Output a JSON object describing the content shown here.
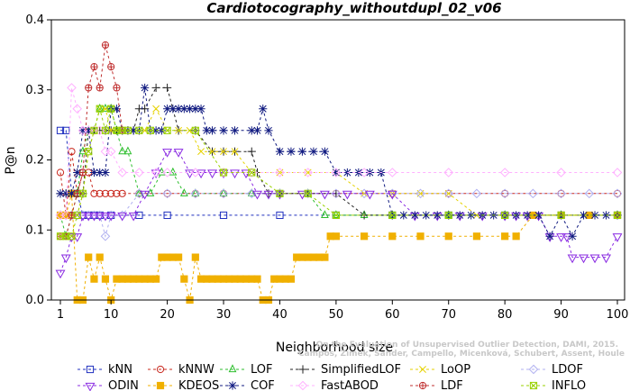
{
  "chart_data": {
    "type": "line",
    "title": "Cardiotocography_withoutdupl_02_v06",
    "xlabel": "Neighborhood size",
    "ylabel": "P@n",
    "xlim": [
      1,
      100
    ],
    "ylim": [
      0,
      0.4
    ],
    "xticks": [
      "1",
      "10",
      "20",
      "30",
      "40",
      "50",
      "60",
      "70",
      "80",
      "90",
      "100"
    ],
    "yticks": [
      "0.0",
      "0.1",
      "0.2",
      "0.3",
      "0.4"
    ],
    "credit_lines": [
      "Campos, Zimek, Sander, Campello, Micenková, Schubert, Assent, Houle",
      "On the Evaluation of Unsupervised Outlier Detection, DAMI, 2015."
    ],
    "legend_position": "bottom",
    "series": [
      {
        "name": "kNN",
        "color": "#1f2fbf",
        "marker": "square",
        "x": [
          1,
          2,
          3,
          4,
          5,
          6,
          7,
          8,
          10,
          15,
          20,
          30,
          40,
          50,
          60,
          70,
          80,
          90,
          100
        ],
        "y": [
          0.242,
          0.242,
          0.152,
          0.152,
          0.121,
          0.121,
          0.121,
          0.121,
          0.121,
          0.121,
          0.121,
          0.121,
          0.121,
          0.121,
          0.121,
          0.121,
          0.121,
          0.121,
          0.121
        ]
      },
      {
        "name": "kNNW",
        "color": "#c8281e",
        "marker": "circle",
        "x": [
          1,
          2,
          3,
          4,
          5,
          6,
          7,
          8,
          9,
          10,
          11,
          12,
          15,
          20,
          25,
          30,
          40,
          50,
          60,
          70,
          80,
          90,
          100
        ],
        "y": [
          0.182,
          0.121,
          0.212,
          0.152,
          0.182,
          0.182,
          0.152,
          0.152,
          0.152,
          0.152,
          0.152,
          0.152,
          0.152,
          0.152,
          0.152,
          0.152,
          0.152,
          0.152,
          0.152,
          0.152,
          0.152,
          0.152,
          0.152
        ]
      },
      {
        "name": "LOF",
        "color": "#2dbe2d",
        "marker": "triangle",
        "x": [
          1,
          2,
          3,
          4,
          5,
          6,
          7,
          8,
          9,
          10,
          11,
          12,
          13,
          15,
          17,
          19,
          21,
          23,
          25,
          30,
          35,
          40,
          45,
          48,
          50,
          55,
          60,
          70,
          80,
          90,
          100
        ],
        "y": [
          0.121,
          0.091,
          0.121,
          0.152,
          0.212,
          0.242,
          0.242,
          0.273,
          0.273,
          0.273,
          0.242,
          0.212,
          0.212,
          0.152,
          0.152,
          0.182,
          0.182,
          0.152,
          0.152,
          0.152,
          0.152,
          0.152,
          0.152,
          0.121,
          0.121,
          0.121,
          0.121,
          0.121,
          0.121,
          0.121,
          0.121
        ]
      },
      {
        "name": "SimplifiedLOF",
        "color": "#222222",
        "marker": "plus",
        "x": [
          1,
          2,
          3,
          4,
          5,
          6,
          7,
          8,
          9,
          10,
          11,
          12,
          13,
          14,
          15,
          16,
          18,
          20,
          22,
          25,
          28,
          30,
          32,
          35,
          36,
          38,
          40,
          45,
          50,
          55,
          60,
          70,
          80,
          90,
          100
        ],
        "y": [
          0.152,
          0.152,
          0.152,
          0.152,
          0.152,
          0.242,
          0.242,
          0.242,
          0.242,
          0.242,
          0.242,
          0.242,
          0.242,
          0.242,
          0.273,
          0.273,
          0.303,
          0.303,
          0.242,
          0.242,
          0.212,
          0.212,
          0.212,
          0.212,
          0.182,
          0.152,
          0.152,
          0.152,
          0.152,
          0.121,
          0.121,
          0.121,
          0.121,
          0.121,
          0.121
        ]
      },
      {
        "name": "LoOP",
        "color": "#e6d200",
        "marker": "x",
        "x": [
          1,
          2,
          3,
          4,
          5,
          6,
          7,
          8,
          9,
          10,
          11,
          12,
          14,
          16,
          18,
          20,
          22,
          24,
          26,
          28,
          30,
          32,
          35,
          40,
          45,
          50,
          55,
          60,
          65,
          70,
          75,
          80,
          90,
          100
        ],
        "y": [
          0.121,
          0.121,
          0.121,
          0.121,
          0.152,
          0.212,
          0.242,
          0.273,
          0.273,
          0.242,
          0.242,
          0.242,
          0.242,
          0.242,
          0.273,
          0.242,
          0.242,
          0.242,
          0.212,
          0.212,
          0.212,
          0.212,
          0.182,
          0.182,
          0.182,
          0.182,
          0.152,
          0.152,
          0.152,
          0.152,
          0.121,
          0.121,
          0.121,
          0.121
        ]
      },
      {
        "name": "LDOF",
        "color": "#b0b0f0",
        "marker": "diamond",
        "x": [
          1,
          2,
          3,
          4,
          5,
          6,
          7,
          8,
          9,
          10,
          12,
          15,
          20,
          25,
          30,
          35,
          40,
          45,
          50,
          55,
          60,
          65,
          70,
          75,
          80,
          85,
          90,
          95,
          100
        ],
        "y": [
          0.121,
          0.121,
          0.121,
          0.121,
          0.121,
          0.121,
          0.121,
          0.121,
          0.091,
          0.121,
          0.121,
          0.152,
          0.152,
          0.152,
          0.152,
          0.152,
          0.152,
          0.152,
          0.152,
          0.152,
          0.152,
          0.152,
          0.152,
          0.152,
          0.152,
          0.152,
          0.152,
          0.152,
          0.152
        ]
      },
      {
        "name": "ODIN",
        "color": "#8a2be2",
        "marker": "triangle-down",
        "x": [
          1,
          2,
          3,
          4,
          5,
          6,
          7,
          8,
          9,
          10,
          12,
          14,
          16,
          18,
          20,
          22,
          24,
          26,
          28,
          30,
          32,
          34,
          36,
          38,
          40,
          44,
          48,
          52,
          56,
          60,
          64,
          68,
          72,
          76,
          80,
          82,
          84,
          86,
          88,
          90,
          91,
          92,
          94,
          96,
          98,
          100
        ],
        "y": [
          0.039,
          0.061,
          0.091,
          0.091,
          0.121,
          0.121,
          0.121,
          0.121,
          0.121,
          0.121,
          0.121,
          0.121,
          0.152,
          0.182,
          0.212,
          0.212,
          0.182,
          0.182,
          0.182,
          0.182,
          0.182,
          0.182,
          0.152,
          0.152,
          0.152,
          0.152,
          0.152,
          0.152,
          0.152,
          0.152,
          0.121,
          0.121,
          0.121,
          0.121,
          0.121,
          0.121,
          0.121,
          0.121,
          0.091,
          0.091,
          0.091,
          0.061,
          0.061,
          0.061,
          0.061,
          0.091
        ]
      },
      {
        "name": "KDEOS",
        "color": "#f0b000",
        "marker": "square-filled",
        "x": [
          1,
          2,
          3,
          4,
          5,
          6,
          7,
          8,
          9,
          10,
          11,
          12,
          13,
          14,
          15,
          16,
          17,
          18,
          19,
          20,
          21,
          22,
          23,
          24,
          25,
          26,
          27,
          28,
          29,
          30,
          31,
          32,
          33,
          34,
          35,
          36,
          37,
          38,
          39,
          40,
          41,
          42,
          43,
          44,
          45,
          46,
          47,
          48,
          49,
          50,
          55,
          60,
          65,
          70,
          75,
          80,
          82,
          85,
          90,
          95,
          100
        ],
        "y": [
          0.121,
          0.121,
          0.152,
          0.0,
          0.0,
          0.061,
          0.03,
          0.061,
          0.03,
          0.0,
          0.03,
          0.03,
          0.03,
          0.03,
          0.03,
          0.03,
          0.03,
          0.03,
          0.061,
          0.061,
          0.061,
          0.061,
          0.03,
          0.0,
          0.061,
          0.03,
          0.03,
          0.03,
          0.03,
          0.03,
          0.03,
          0.03,
          0.03,
          0.03,
          0.03,
          0.03,
          0.0,
          0.0,
          0.03,
          0.03,
          0.03,
          0.03,
          0.061,
          0.061,
          0.061,
          0.061,
          0.061,
          0.061,
          0.091,
          0.091,
          0.091,
          0.091,
          0.091,
          0.091,
          0.091,
          0.091,
          0.091,
          0.121,
          0.121,
          0.121,
          0.121
        ]
      },
      {
        "name": "COF",
        "color": "#101a80",
        "marker": "asterisk",
        "x": [
          1,
          2,
          3,
          4,
          5,
          6,
          7,
          8,
          9,
          10,
          11,
          12,
          13,
          14,
          15,
          16,
          17,
          18,
          19,
          20,
          21,
          22,
          23,
          24,
          25,
          26,
          27,
          28,
          30,
          32,
          35,
          36,
          37,
          38,
          40,
          42,
          44,
          46,
          48,
          50,
          52,
          54,
          56,
          58,
          60,
          62,
          64,
          66,
          68,
          70,
          72,
          74,
          76,
          78,
          80,
          82,
          84,
          86,
          88,
          90,
          92,
          94,
          96,
          98,
          100
        ],
        "y": [
          0.152,
          0.152,
          0.152,
          0.182,
          0.242,
          0.242,
          0.182,
          0.182,
          0.182,
          0.273,
          0.273,
          0.242,
          0.242,
          0.242,
          0.242,
          0.303,
          0.242,
          0.242,
          0.242,
          0.273,
          0.273,
          0.273,
          0.273,
          0.273,
          0.273,
          0.273,
          0.242,
          0.242,
          0.242,
          0.242,
          0.242,
          0.242,
          0.273,
          0.242,
          0.212,
          0.212,
          0.212,
          0.212,
          0.212,
          0.182,
          0.182,
          0.182,
          0.182,
          0.182,
          0.121,
          0.121,
          0.121,
          0.121,
          0.121,
          0.121,
          0.121,
          0.121,
          0.121,
          0.121,
          0.121,
          0.121,
          0.121,
          0.121,
          0.091,
          0.121,
          0.091,
          0.121,
          0.121,
          0.121,
          0.121
        ]
      },
      {
        "name": "FastABOD",
        "color": "#ffb0ff",
        "marker": "diamond",
        "x": [
          1,
          2,
          3,
          4,
          5,
          6,
          7,
          8,
          9,
          10,
          12,
          15,
          18,
          20,
          25,
          30,
          35,
          40,
          45,
          50,
          55,
          60,
          70,
          80,
          90,
          100
        ],
        "y": [
          0.121,
          0.121,
          0.303,
          0.273,
          0.242,
          0.242,
          0.242,
          0.242,
          0.212,
          0.212,
          0.182,
          0.182,
          0.182,
          0.182,
          0.182,
          0.182,
          0.182,
          0.182,
          0.182,
          0.182,
          0.182,
          0.182,
          0.182,
          0.182,
          0.182,
          0.182
        ]
      },
      {
        "name": "LDF",
        "color": "#c03030",
        "marker": "circle-plus",
        "x": [
          1,
          2,
          3,
          4,
          5,
          6,
          7,
          8,
          9,
          10,
          11,
          12
        ],
        "y": [
          0.091,
          0.091,
          0.121,
          0.152,
          0.182,
          0.303,
          0.333,
          0.303,
          0.364,
          0.333,
          0.303,
          0.242
        ]
      },
      {
        "name": "INFLO",
        "color": "#9ad200",
        "marker": "square-x",
        "x": [
          1,
          2,
          3,
          4,
          5,
          6,
          7,
          8,
          9,
          10,
          11,
          12,
          13,
          15,
          17,
          20,
          25,
          30,
          35,
          40,
          45,
          50,
          60,
          70,
          80,
          90,
          100
        ],
        "y": [
          0.091,
          0.091,
          0.091,
          0.121,
          0.152,
          0.212,
          0.242,
          0.273,
          0.242,
          0.273,
          0.242,
          0.242,
          0.242,
          0.242,
          0.242,
          0.242,
          0.242,
          0.182,
          0.182,
          0.152,
          0.152,
          0.121,
          0.121,
          0.121,
          0.121,
          0.121,
          0.121
        ]
      }
    ]
  }
}
